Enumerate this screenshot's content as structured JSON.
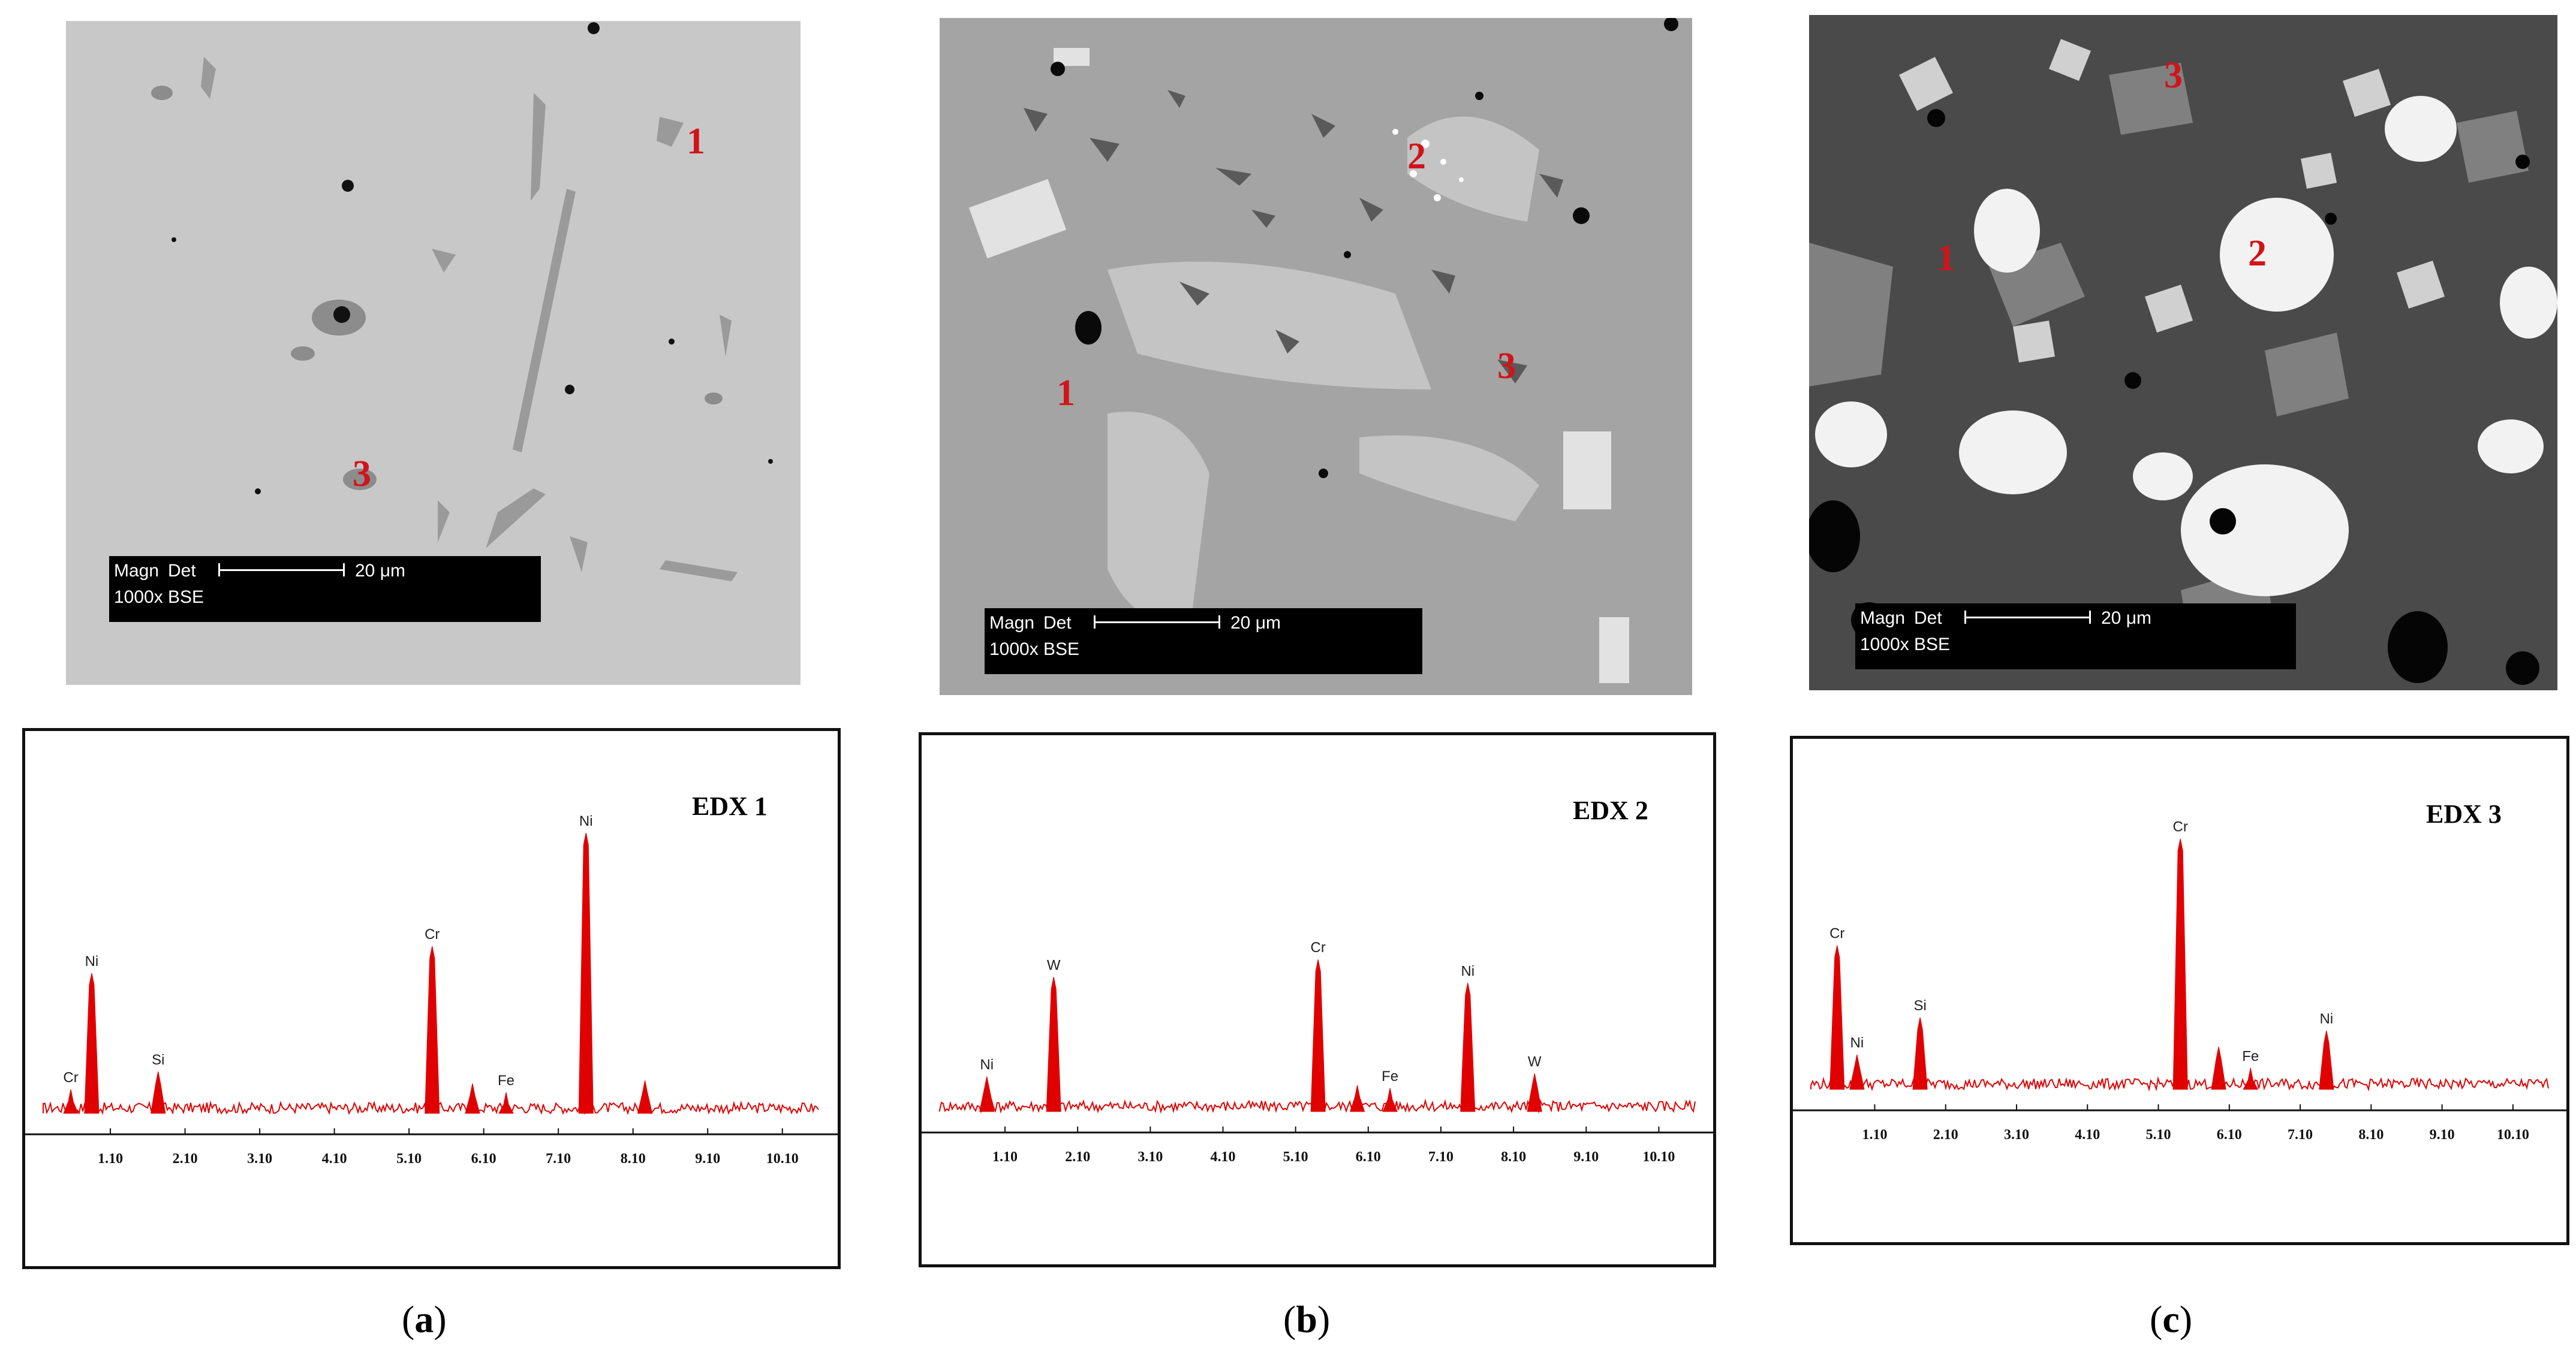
{
  "micrographs": [
    {
      "id": "a",
      "scalebar": {
        "magn": "Magn",
        "det": "Det",
        "length": "20 μm",
        "mag": "1000x",
        "mode": "BSE"
      },
      "markers": [
        "1",
        "3"
      ]
    },
    {
      "id": "b",
      "scalebar": {
        "magn": "Magn",
        "det": "Det",
        "length": "20 μm",
        "mag": "1000x",
        "mode": "BSE"
      },
      "markers": [
        "2",
        "1",
        "3"
      ]
    },
    {
      "id": "c",
      "scalebar": {
        "magn": "Magn",
        "det": "Det",
        "length": "20 μm",
        "mag": "1000x",
        "mode": "BSE"
      },
      "markers": [
        "3",
        "1",
        "2"
      ]
    }
  ],
  "captions": {
    "a": "a",
    "b": "b",
    "c": "c"
  },
  "colors": {
    "spectrum": "#e00000",
    "marker": "#d0141a"
  },
  "chart_data": [
    {
      "type": "line",
      "title": "EDX 1",
      "xticks": [
        "1.10",
        "2.10",
        "3.10",
        "4.10",
        "5.10",
        "6.10",
        "7.10",
        "8.10",
        "9.10",
        "10.10"
      ],
      "xlim": [
        0.2,
        10.6
      ],
      "ylim": [
        0,
        100
      ],
      "peaks": [
        {
          "label": "Cr",
          "x": 0.57,
          "y": 8
        },
        {
          "label": "Ni",
          "x": 0.85,
          "y": 47
        },
        {
          "label": "Si",
          "x": 1.74,
          "y": 14
        },
        {
          "label": "Cr",
          "x": 5.41,
          "y": 56
        },
        {
          "label": "Fe",
          "x": 6.4,
          "y": 7
        },
        {
          "label": "Ni",
          "x": 7.47,
          "y": 94
        }
      ],
      "unlabeled_peaks": [
        {
          "x": 5.95,
          "y": 10
        },
        {
          "x": 8.26,
          "y": 11
        }
      ]
    },
    {
      "type": "line",
      "title": "EDX 2",
      "xticks": [
        "1.10",
        "2.10",
        "3.10",
        "4.10",
        "5.10",
        "6.10",
        "7.10",
        "8.10",
        "9.10",
        "10.10"
      ],
      "xlim": [
        0.2,
        10.6
      ],
      "ylim": [
        0,
        100
      ],
      "peaks": [
        {
          "label": "Ni",
          "x": 0.85,
          "y": 12
        },
        {
          "label": "W",
          "x": 1.77,
          "y": 46
        },
        {
          "label": "Cr",
          "x": 5.41,
          "y": 52
        },
        {
          "label": "Fe",
          "x": 6.4,
          "y": 8
        },
        {
          "label": "Ni",
          "x": 7.47,
          "y": 44
        },
        {
          "label": "W",
          "x": 8.39,
          "y": 13
        }
      ],
      "unlabeled_peaks": [
        {
          "x": 5.95,
          "y": 9
        }
      ]
    },
    {
      "type": "line",
      "title": "EDX 3",
      "xticks": [
        "1.10",
        "2.10",
        "3.10",
        "4.10",
        "5.10",
        "6.10",
        "7.10",
        "8.10",
        "9.10",
        "10.10"
      ],
      "xlim": [
        0.2,
        10.6
      ],
      "ylim": [
        0,
        100
      ],
      "peaks": [
        {
          "label": "Cr",
          "x": 0.57,
          "y": 54
        },
        {
          "label": "Ni",
          "x": 0.85,
          "y": 13
        },
        {
          "label": "Si",
          "x": 1.74,
          "y": 27
        },
        {
          "label": "Cr",
          "x": 5.41,
          "y": 94
        },
        {
          "label": "Fe",
          "x": 6.4,
          "y": 8
        },
        {
          "label": "Ni",
          "x": 7.47,
          "y": 22
        }
      ],
      "unlabeled_peaks": [
        {
          "x": 5.95,
          "y": 16
        }
      ]
    }
  ]
}
